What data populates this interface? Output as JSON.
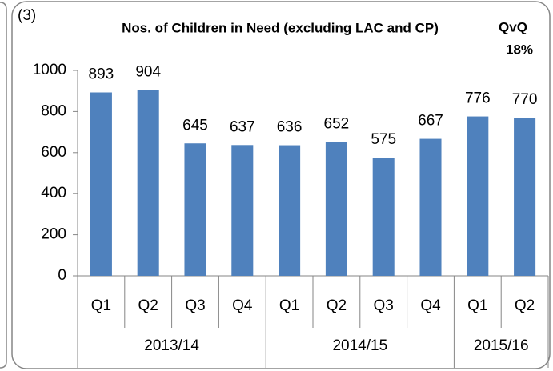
{
  "chart_data": {
    "type": "bar",
    "panel_label": "(3)",
    "title": "Nos. of Children in Need (excluding LAC and CP)",
    "annotation_title": "QvQ",
    "annotation_value": "18%",
    "categories": [
      "Q1",
      "Q2",
      "Q3",
      "Q4",
      "Q1",
      "Q2",
      "Q3",
      "Q4",
      "Q1",
      "Q2"
    ],
    "groups": [
      {
        "label": "2013/14",
        "span": 4
      },
      {
        "label": "2014/15",
        "span": 4
      },
      {
        "label": "2015/16",
        "span": 2
      }
    ],
    "values": [
      893,
      904,
      645,
      637,
      636,
      652,
      575,
      667,
      776,
      770
    ],
    "color": "#4f81bd",
    "ylim": [
      0,
      1000
    ],
    "yticks": [
      0,
      200,
      400,
      600,
      800,
      1000
    ],
    "grid": false
  }
}
